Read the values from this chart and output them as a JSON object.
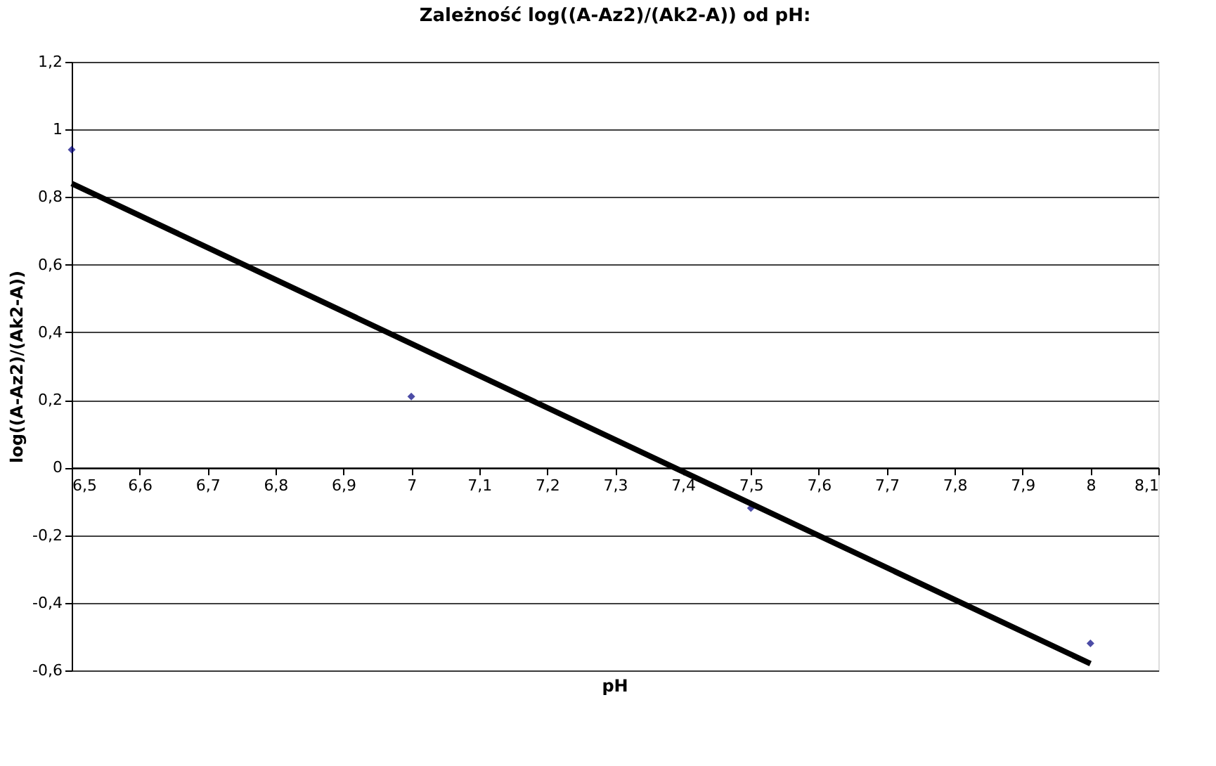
{
  "chart_data": {
    "type": "scatter",
    "title": "Zależność log((A-Az2)/(Ak2-A)) od pH:",
    "xlabel": "pH",
    "ylabel": "log((A-Az2)/(Ak2-A))",
    "x": [
      6.5,
      7,
      7.5,
      8
    ],
    "series": [
      {
        "color": "#000080",
        "values": [
          0.94,
          0.21,
          -0.12,
          -0.52
        ],
        "marker": "diamond"
      },
      {
        "type": "line",
        "color": "#000000",
        "x": [
          6.5,
          8
        ],
        "values": [
          0.84,
          -0.58
        ],
        "marker": "none",
        "line_style": "solid"
      }
    ],
    "xlim": [
      6.5,
      8.1
    ],
    "xticks": [
      {
        "value": 6.5,
        "label": "6,5"
      },
      {
        "value": 6.6,
        "label": "6,6"
      },
      {
        "value": 6.7,
        "label": "6,7"
      },
      {
        "value": 6.8,
        "label": "6,8"
      },
      {
        "value": 6.9,
        "label": "6,9"
      },
      {
        "value": 7,
        "label": "7"
      },
      {
        "value": 7.1,
        "label": "7,1"
      },
      {
        "value": 7.2,
        "label": "7,2"
      },
      {
        "value": 7.3,
        "label": "7,3"
      },
      {
        "value": 7.4,
        "label": "7,4"
      },
      {
        "value": 7.5,
        "label": "7,5"
      },
      {
        "value": 7.6,
        "label": "7,6"
      },
      {
        "value": 7.7,
        "label": "7,7"
      },
      {
        "value": 7.8,
        "label": "7,8"
      },
      {
        "value": 7.9,
        "label": "7,9"
      },
      {
        "value": 8,
        "label": "8"
      },
      {
        "value": 8.1,
        "label": "8,1"
      }
    ],
    "ylim": [
      -0.6,
      1.2
    ],
    "yticks": [
      {
        "value": -0.6,
        "label": "-0,6"
      },
      {
        "value": -0.4,
        "label": "-0,4"
      },
      {
        "value": -0.2,
        "label": "-0,2"
      },
      {
        "value": 0,
        "label": "0"
      },
      {
        "value": 0.2,
        "label": "0,2"
      },
      {
        "value": 0.4,
        "label": "0,4"
      },
      {
        "value": 0.6,
        "label": "0,6"
      },
      {
        "value": 0.8,
        "label": "0,8"
      },
      {
        "value": 1,
        "label": "1"
      },
      {
        "value": 1.2,
        "label": "1,2"
      }
    ],
    "grid": "y"
  }
}
